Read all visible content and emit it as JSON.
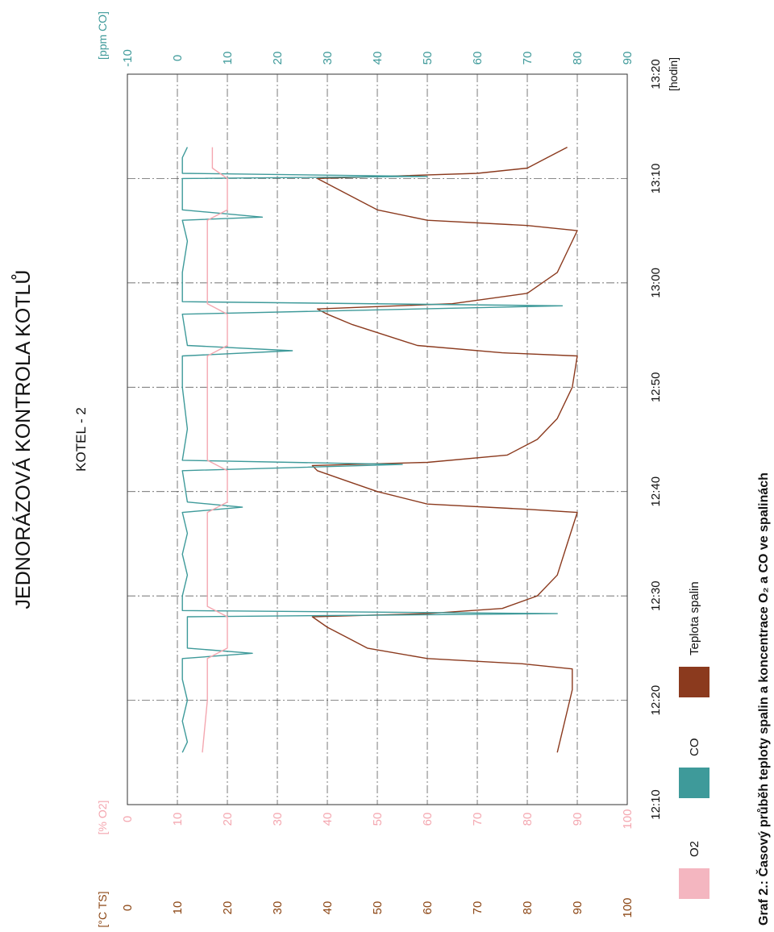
{
  "page_title": "JEDNORÁZOVÁ KONTROLA KOTLŮ",
  "caption": "Graf 2.: Časový průběh teploty spalin a koncentrace O₂ a CO ve spalinách",
  "chart_data": {
    "type": "line",
    "title": "KOTEL - 2",
    "xlabel": "[hodin]",
    "x_ticks": [
      "12:10",
      "12:20",
      "12:30",
      "12:40",
      "12:50",
      "13:00",
      "13:10",
      "13:20"
    ],
    "xlim": [
      "12:10",
      "13:20"
    ],
    "axes": {
      "temperature": {
        "label": "[°C TS]",
        "range": [
          0,
          100
        ],
        "ticks": [
          0,
          10,
          20,
          30,
          40,
          50,
          60,
          70,
          80,
          90,
          100
        ],
        "color": "#8B4513"
      },
      "o2": {
        "label": "[% O2]",
        "range": [
          0,
          100
        ],
        "ticks": [
          0,
          10,
          20,
          30,
          40,
          50,
          60,
          70,
          80,
          90,
          100
        ],
        "color": "#F4A7B0"
      },
      "co": {
        "label": "[ppm CO]",
        "range": [
          -10,
          90
        ],
        "ticks": [
          -10,
          0,
          10,
          20,
          30,
          40,
          50,
          60,
          70,
          80,
          90
        ],
        "color": "#3E9A9A"
      }
    },
    "grid": true,
    "legend_position": "bottom",
    "legend": [
      {
        "label": "O2",
        "color": "#F4B6C0"
      },
      {
        "label": "CO",
        "color": "#3E9A9A"
      },
      {
        "label": "Teplota spalin",
        "color": "#8B3A1E"
      }
    ],
    "series": [
      {
        "name": "Teplota spalin",
        "axis": "temperature",
        "color": "#8B3A1E",
        "points": [
          [
            "12:15",
            86
          ],
          [
            "12:17",
            87
          ],
          [
            "12:19",
            88
          ],
          [
            "12:21",
            89
          ],
          [
            "12:23",
            89
          ],
          [
            "12:23.5",
            79
          ],
          [
            "12:24",
            60
          ],
          [
            "12:25",
            48
          ],
          [
            "12:26",
            44
          ],
          [
            "12:27",
            40
          ],
          [
            "12:28",
            37
          ],
          [
            "12:28.3",
            60
          ],
          [
            "12:28.8",
            75
          ],
          [
            "12:30",
            82
          ],
          [
            "12:32",
            86
          ],
          [
            "12:35",
            88
          ],
          [
            "12:38",
            90
          ],
          [
            "12:38.3",
            80
          ],
          [
            "12:38.8",
            60
          ],
          [
            "12:40",
            50
          ],
          [
            "12:41",
            44
          ],
          [
            "12:42",
            38
          ],
          [
            "12:42.5",
            37
          ],
          [
            "12:42.8",
            60
          ],
          [
            "12:43.5",
            76
          ],
          [
            "12:45",
            82
          ],
          [
            "12:47",
            86
          ],
          [
            "12:50",
            89
          ],
          [
            "12:53",
            90
          ],
          [
            "12:53.3",
            75
          ],
          [
            "12:54",
            58
          ],
          [
            "12:56",
            45
          ],
          [
            "12:57",
            40
          ],
          [
            "12:57.5",
            38
          ],
          [
            "12:58",
            65
          ],
          [
            "12:59",
            80
          ],
          [
            "13:01",
            86
          ],
          [
            "13:03",
            88
          ],
          [
            "13:05",
            90
          ],
          [
            "13:05.5",
            80
          ],
          [
            "13:06",
            60
          ],
          [
            "13:07",
            50
          ],
          [
            "13:09",
            42
          ],
          [
            "13:10",
            38
          ],
          [
            "13:10.5",
            70
          ],
          [
            "13:11",
            80
          ],
          [
            "13:12",
            84
          ],
          [
            "13:13",
            88
          ]
        ]
      },
      {
        "name": "CO",
        "axis": "co",
        "color": "#3E9A9A",
        "points": [
          [
            "12:15",
            1
          ],
          [
            "12:16",
            2
          ],
          [
            "12:18",
            1
          ],
          [
            "12:20",
            2
          ],
          [
            "12:22",
            1
          ],
          [
            "12:24",
            1
          ],
          [
            "12:24.5",
            15
          ],
          [
            "12:25",
            2
          ],
          [
            "12:27",
            2
          ],
          [
            "12:28",
            2
          ],
          [
            "12:28.3",
            76
          ],
          [
            "12:28.6",
            1
          ],
          [
            "12:30",
            1
          ],
          [
            "12:32",
            2
          ],
          [
            "12:34",
            1
          ],
          [
            "12:36",
            2
          ],
          [
            "12:38",
            1
          ],
          [
            "12:38.5",
            13
          ],
          [
            "12:39",
            2
          ],
          [
            "12:42",
            1
          ],
          [
            "12:42.6",
            45
          ],
          [
            "12:43",
            1
          ],
          [
            "12:46",
            2
          ],
          [
            "12:50",
            1
          ],
          [
            "12:53",
            1
          ],
          [
            "12:53.5",
            23
          ],
          [
            "12:54",
            2
          ],
          [
            "12:57",
            1
          ],
          [
            "12:57.8",
            77
          ],
          [
            "12:58.2",
            1
          ],
          [
            "13:01",
            1
          ],
          [
            "13:04",
            2
          ],
          [
            "13:06",
            1
          ],
          [
            "13:06.3",
            17
          ],
          [
            "13:07",
            1
          ],
          [
            "13:10",
            1
          ],
          [
            "13:10.2",
            50
          ],
          [
            "13:10.5",
            1
          ],
          [
            "13:12",
            1
          ],
          [
            "13:13",
            2
          ]
        ]
      },
      {
        "name": "O2",
        "axis": "o2",
        "color": "#F4A7B0",
        "points": [
          [
            "12:15",
            15
          ],
          [
            "12:20",
            16
          ],
          [
            "12:24",
            16
          ],
          [
            "12:25",
            20
          ],
          [
            "12:28",
            20
          ],
          [
            "12:29",
            16
          ],
          [
            "12:38",
            16
          ],
          [
            "12:39",
            20
          ],
          [
            "12:42",
            20
          ],
          [
            "12:43",
            16
          ],
          [
            "12:53",
            16
          ],
          [
            "12:54",
            20
          ],
          [
            "12:57",
            20
          ],
          [
            "12:58",
            16
          ],
          [
            "13:06",
            16
          ],
          [
            "13:07",
            20
          ],
          [
            "13:10",
            20
          ],
          [
            "13:11",
            17
          ],
          [
            "13:13",
            17
          ]
        ]
      }
    ]
  }
}
